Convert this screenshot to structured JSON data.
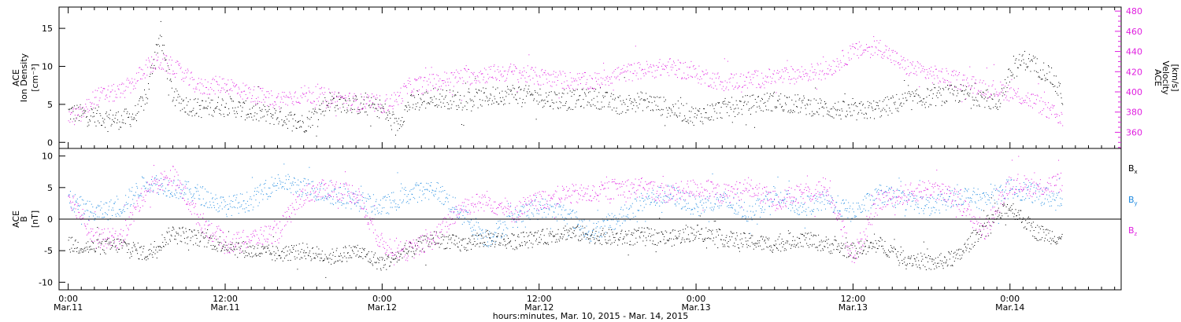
{
  "figure": {
    "xlabel": "hours:minutes, Mar. 10, 2015 - Mar. 14, 2015",
    "colors": {
      "black": "#000000",
      "magenta": "#e01ee0",
      "blue": "#1e8ae0"
    }
  },
  "chart_data": [
    {
      "type": "scatter",
      "panel": "top",
      "x_ticks": [
        {
          "time": "0:00",
          "date": "Mar.11"
        },
        {
          "time": "12:00",
          "date": "Mar.11"
        },
        {
          "time": "0:00",
          "date": "Mar.12"
        },
        {
          "time": "12:00",
          "date": "Mar.12"
        },
        {
          "time": "0:00",
          "date": "Mar.13"
        },
        {
          "time": "12:00",
          "date": "Mar.13"
        },
        {
          "time": "0:00",
          "date": "Mar.14"
        }
      ],
      "x_range_hours_from_mar11": [
        -0.7,
        80.5
      ],
      "left_axis": {
        "label_lines": [
          "ACE",
          "Ion Density"
        ],
        "unit": "[cm⁻³]",
        "ylim": [
          -0.8,
          17.8
        ],
        "ticks": [
          0,
          5,
          10,
          15
        ]
      },
      "right_axis": {
        "label_lines": [
          "ACE",
          "Velocity"
        ],
        "unit": "[km/s]",
        "ylim": [
          344,
          484
        ],
        "ticks": [
          360,
          380,
          400,
          420,
          440,
          460,
          480
        ],
        "color": "#e01ee0"
      },
      "series": [
        {
          "key": "density",
          "axis": "left",
          "color": "#000000",
          "x_hours": [
            0,
            2,
            4,
            5,
            6,
            6.5,
            7,
            8,
            9,
            10,
            12,
            14,
            16,
            18,
            20,
            22,
            24,
            25,
            26,
            28,
            30,
            32,
            34,
            36,
            38,
            40,
            42,
            44,
            46,
            48,
            50,
            52,
            54,
            56,
            58,
            60,
            62,
            64,
            66,
            68,
            70,
            71,
            72,
            73,
            74,
            75,
            76
          ],
          "values": [
            4,
            3.5,
            3,
            3.5,
            6,
            11,
            14,
            6,
            5,
            4.5,
            5,
            4,
            3.5,
            2.5,
            5.5,
            5,
            4.5,
            2,
            5,
            6,
            5.5,
            6,
            6.5,
            6,
            5.5,
            6,
            5,
            5.5,
            4.5,
            3.5,
            4.5,
            5,
            5.5,
            5,
            4.5,
            4,
            4.5,
            5.5,
            6,
            6.5,
            6,
            5,
            9,
            11,
            10,
            9,
            6
          ]
        },
        {
          "key": "velocity",
          "axis": "right",
          "color": "#e01ee0",
          "x_hours": [
            0,
            1,
            2,
            3,
            4,
            5,
            6,
            7,
            8,
            9,
            10,
            12,
            14,
            16,
            18,
            20,
            22,
            24,
            25,
            26,
            28,
            30,
            32,
            34,
            36,
            38,
            40,
            42,
            44,
            46,
            48,
            50,
            52,
            54,
            56,
            58,
            60,
            62,
            64,
            66,
            68,
            70,
            72,
            74,
            75,
            76
          ],
          "values": [
            375,
            378,
            395,
            398,
            400,
            410,
            425,
            430,
            425,
            415,
            405,
            408,
            398,
            392,
            398,
            395,
            390,
            388,
            392,
            405,
            410,
            415,
            418,
            420,
            415,
            412,
            410,
            418,
            422,
            425,
            418,
            410,
            412,
            415,
            418,
            422,
            440,
            445,
            425,
            418,
            412,
            405,
            400,
            390,
            380,
            375
          ]
        }
      ]
    },
    {
      "type": "scatter",
      "panel": "bottom",
      "x_range_hours_from_mar11": [
        -0.7,
        80.5
      ],
      "left_axis": {
        "label_lines": [
          "ACE",
          "B"
        ],
        "unit": "[nT]",
        "ylim": [
          -11.2,
          11.2
        ],
        "ticks": [
          -10,
          -5,
          0,
          5,
          10
        ]
      },
      "legend": [
        {
          "label": "Bx",
          "color": "#000000"
        },
        {
          "label": "By",
          "color": "#1e8ae0"
        },
        {
          "label": "Bz",
          "color": "#e01ee0"
        }
      ],
      "series": [
        {
          "key": "bx",
          "color": "#000000",
          "x_hours": [
            0,
            2,
            4,
            6,
            8,
            10,
            12,
            14,
            16,
            18,
            20,
            22,
            24,
            26,
            28,
            30,
            32,
            34,
            36,
            38,
            40,
            42,
            44,
            46,
            48,
            50,
            52,
            54,
            56,
            58,
            60,
            62,
            64,
            66,
            68,
            70,
            72,
            74,
            76
          ],
          "values": [
            -4,
            -4.5,
            -4,
            -5.5,
            -2,
            -3,
            -4,
            -5,
            -5.5,
            -5,
            -6,
            -5,
            -7,
            -5,
            -3,
            -4,
            -3,
            -3.5,
            -3,
            -2,
            -2.5,
            -3,
            -2.5,
            -3,
            -2,
            -3,
            -3.5,
            -4,
            -3,
            -4,
            -5,
            -4,
            -6,
            -7,
            -6,
            -1,
            2,
            -2,
            -3
          ]
        },
        {
          "key": "by",
          "color": "#1e8ae0",
          "x_hours": [
            0,
            2,
            4,
            6,
            8,
            10,
            12,
            14,
            16,
            18,
            20,
            22,
            24,
            26,
            28,
            30,
            32,
            34,
            36,
            38,
            40,
            42,
            44,
            46,
            48,
            50,
            52,
            54,
            56,
            58,
            60,
            62,
            64,
            66,
            68,
            70,
            72,
            74,
            76
          ],
          "values": [
            3,
            1,
            2,
            6,
            5,
            4,
            2,
            3,
            6,
            5,
            4,
            3,
            2,
            4,
            5,
            1,
            -3,
            0,
            2,
            1,
            -2,
            0,
            3,
            4,
            2,
            3,
            1,
            4,
            2,
            3,
            1,
            4,
            3,
            2,
            4,
            3,
            5,
            4,
            3
          ]
        },
        {
          "key": "bz",
          "color": "#e01ee0",
          "x_hours": [
            0,
            2,
            4,
            6,
            8,
            10,
            12,
            14,
            16,
            18,
            20,
            22,
            24,
            26,
            28,
            30,
            32,
            34,
            36,
            38,
            40,
            42,
            44,
            46,
            48,
            50,
            52,
            54,
            56,
            58,
            60,
            62,
            64,
            66,
            68,
            70,
            72,
            74,
            76
          ],
          "values": [
            4,
            -3,
            -3,
            5,
            7,
            0,
            -4,
            -3,
            -2,
            4,
            5,
            4,
            -4,
            -5,
            -3,
            2,
            3,
            1,
            3,
            4,
            4,
            5,
            5,
            4,
            5,
            4,
            5,
            3,
            4,
            5,
            -6,
            3,
            4,
            5,
            3,
            -2,
            6,
            5,
            6
          ]
        }
      ]
    }
  ]
}
